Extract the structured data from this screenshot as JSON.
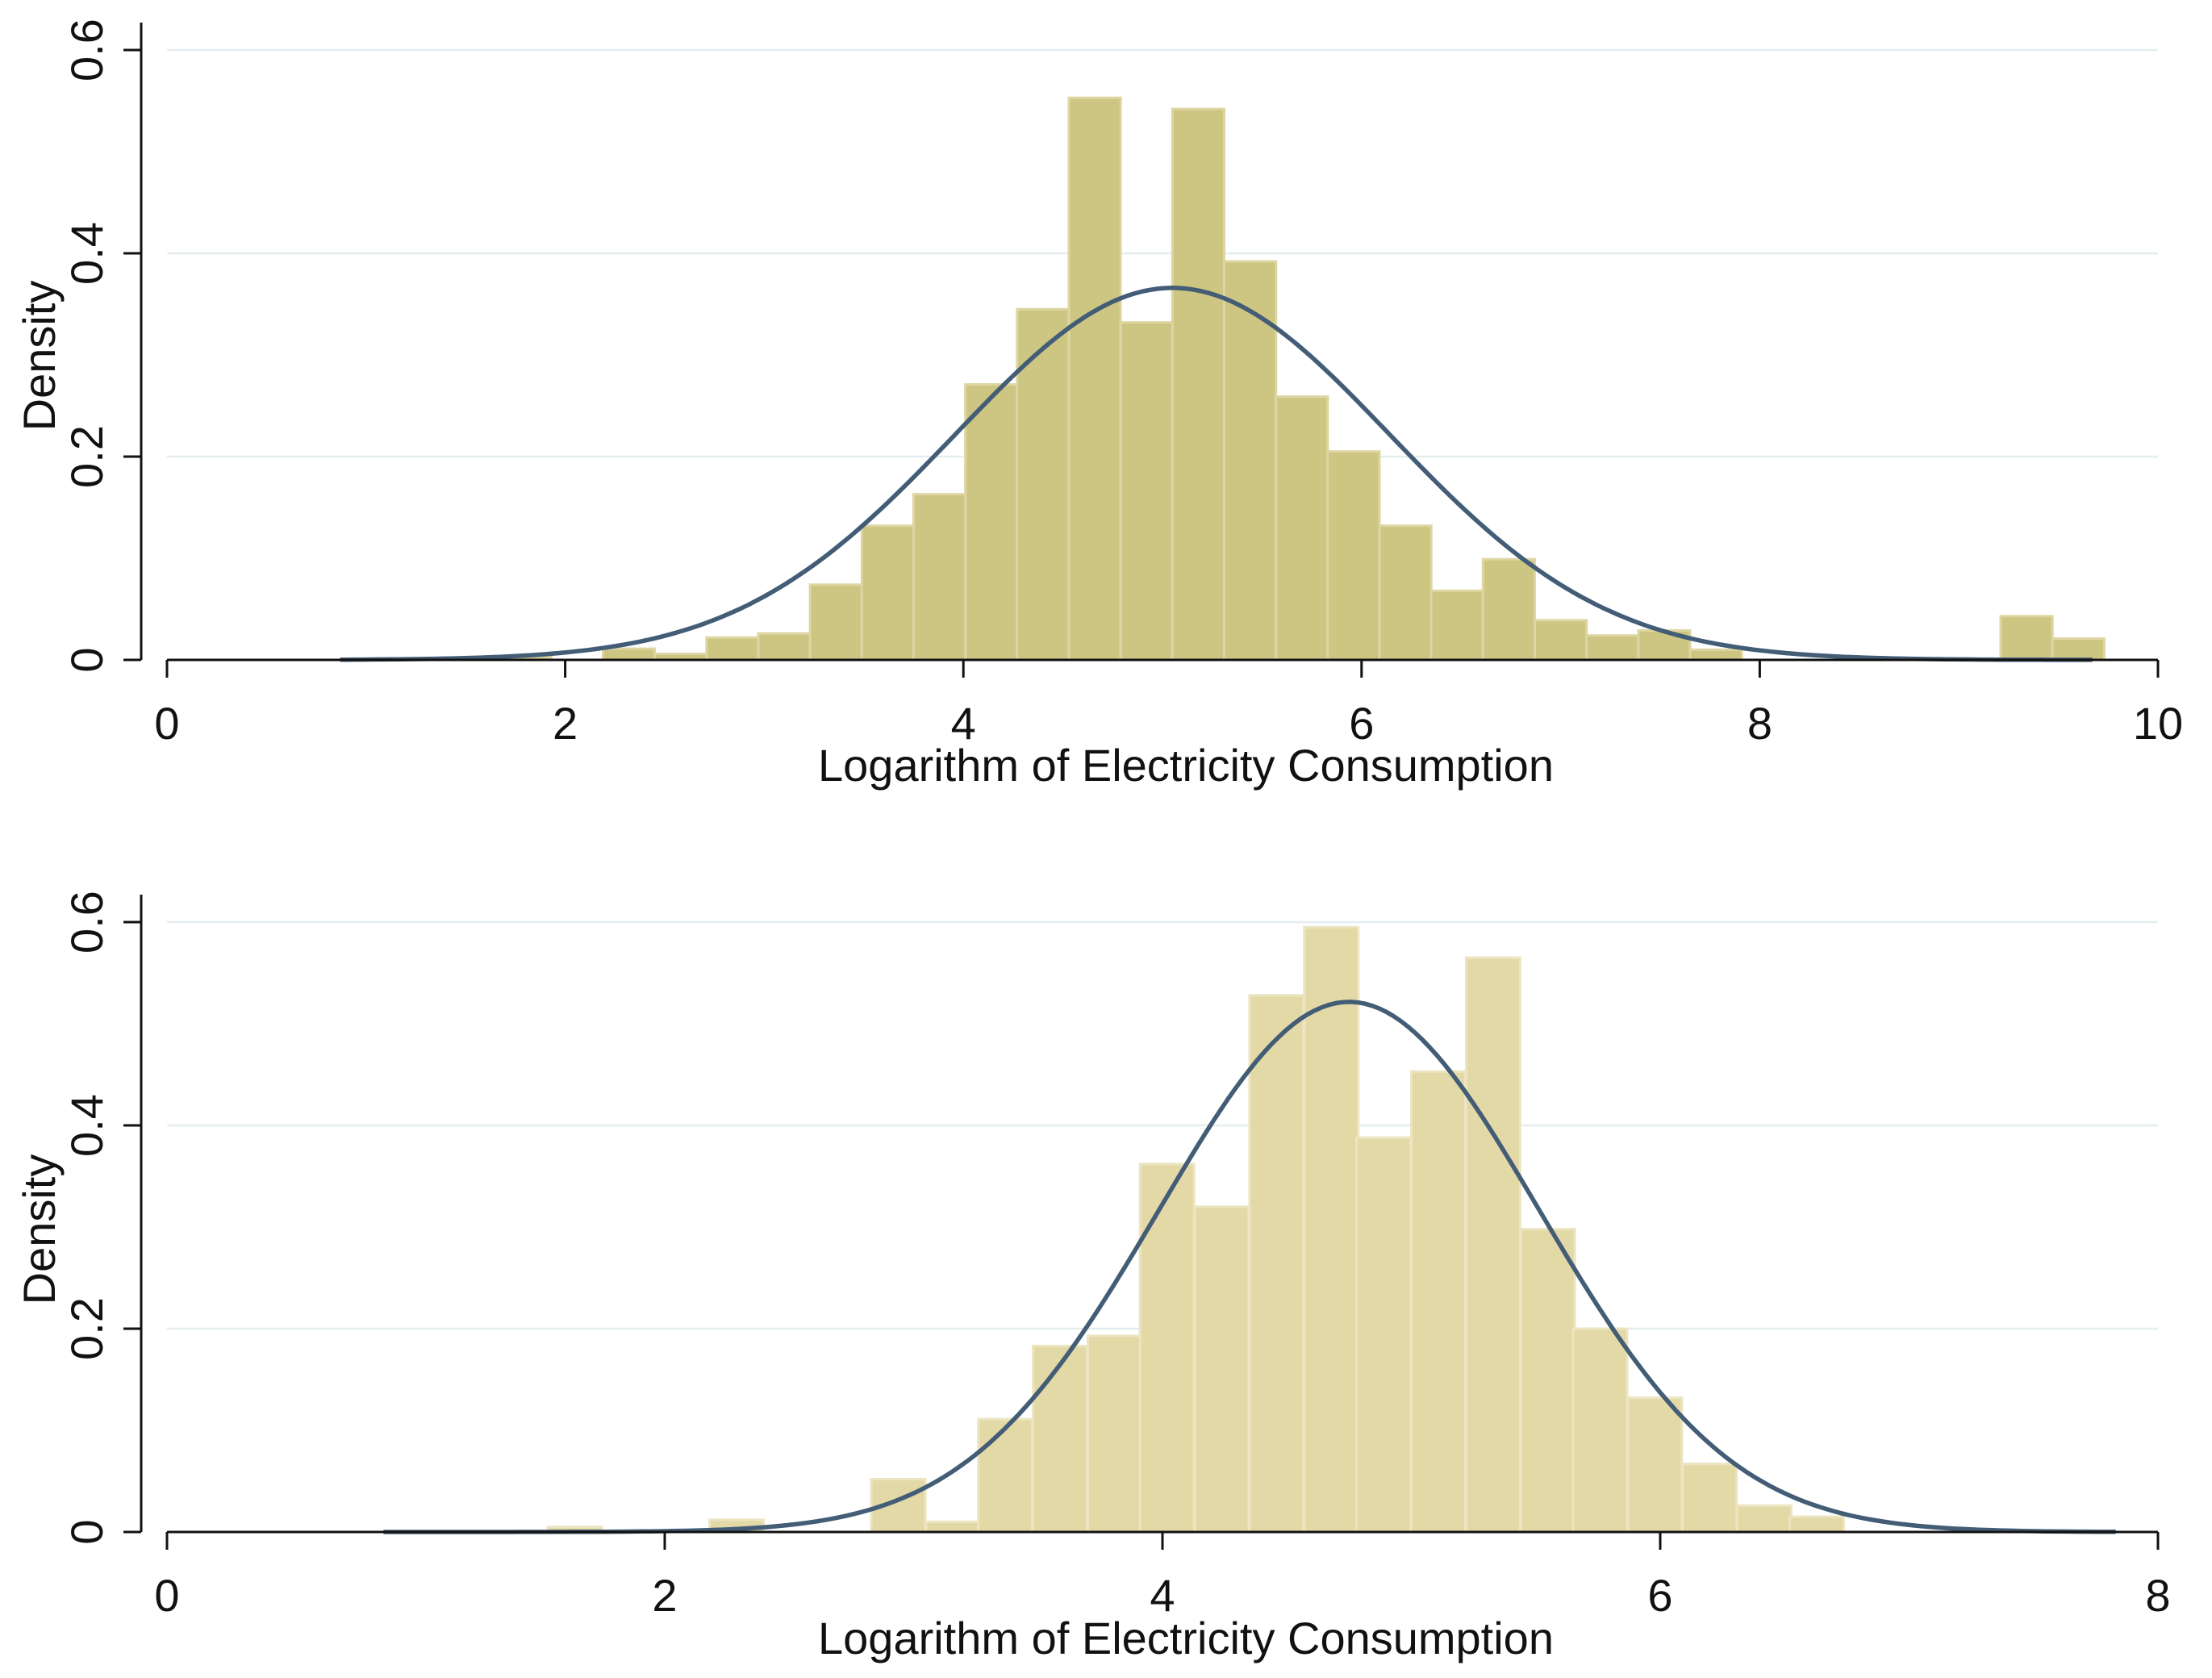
{
  "colors": {
    "background": "#ffffff",
    "grid": "#e4eef0",
    "axis": "#111111",
    "curve": "#435d77"
  },
  "chart_data": [
    {
      "type": "bar",
      "title": "",
      "xlabel": "Logarithm of Electricity Consumption",
      "ylabel": "Density",
      "xlim": [
        0,
        10
      ],
      "ylim": [
        0,
        0.6
      ],
      "xticks": [
        0,
        2,
        4,
        6,
        8,
        10
      ],
      "xtick_labels": [
        "0",
        "2",
        "4",
        "6",
        "8",
        "10"
      ],
      "yticks": [
        0,
        0.2,
        0.4,
        0.6
      ],
      "ytick_labels": [
        "0",
        "0.2",
        "0.4",
        "0.6"
      ],
      "grid": true,
      "bar_color": "#cdc582",
      "bar_edge": "#ddd6a2",
      "bin_width": 0.26,
      "bins": [
        {
          "start": 1.67,
          "density": 0.003
        },
        {
          "start": 2.19,
          "density": 0.011
        },
        {
          "start": 2.45,
          "density": 0.006
        },
        {
          "start": 2.71,
          "density": 0.022
        },
        {
          "start": 2.97,
          "density": 0.026
        },
        {
          "start": 3.23,
          "density": 0.074
        },
        {
          "start": 3.49,
          "density": 0.132
        },
        {
          "start": 3.75,
          "density": 0.163
        },
        {
          "start": 4.01,
          "density": 0.271
        },
        {
          "start": 4.27,
          "density": 0.345
        },
        {
          "start": 4.53,
          "density": 0.553
        },
        {
          "start": 4.79,
          "density": 0.332
        },
        {
          "start": 5.05,
          "density": 0.542
        },
        {
          "start": 5.31,
          "density": 0.392
        },
        {
          "start": 5.57,
          "density": 0.259
        },
        {
          "start": 5.83,
          "density": 0.205
        },
        {
          "start": 6.09,
          "density": 0.132
        },
        {
          "start": 6.35,
          "density": 0.068
        },
        {
          "start": 6.61,
          "density": 0.099
        },
        {
          "start": 6.87,
          "density": 0.039
        },
        {
          "start": 7.13,
          "density": 0.024
        },
        {
          "start": 7.39,
          "density": 0.029
        },
        {
          "start": 7.65,
          "density": 0.01
        },
        {
          "start": 9.21,
          "density": 0.043
        },
        {
          "start": 9.47,
          "density": 0.021
        }
      ],
      "normal_curve": {
        "mean": 5.05,
        "sd": 1.09,
        "x_range": [
          0.87,
          9.67
        ]
      }
    },
    {
      "type": "bar",
      "title": "",
      "xlabel": "Logarithm of Electricity Consumption",
      "ylabel": "Density",
      "xlim": [
        0,
        8
      ],
      "ylim": [
        0,
        0.6
      ],
      "xticks": [
        0,
        2,
        4,
        6,
        8
      ],
      "xtick_labels": [
        "0",
        "2",
        "4",
        "6",
        "8"
      ],
      "yticks": [
        0,
        0.2,
        0.4,
        0.6
      ],
      "ytick_labels": [
        "0",
        "0.2",
        "0.4",
        "0.6"
      ],
      "grid": true,
      "bar_color": "#e3d9a6",
      "bar_edge": "#ece5c2",
      "bin_width": 0.217,
      "bins": [
        {
          "start": 1.53,
          "density": 0.005
        },
        {
          "start": 2.18,
          "density": 0.012
        },
        {
          "start": 2.83,
          "density": 0.052
        },
        {
          "start": 3.05,
          "density": 0.01
        },
        {
          "start": 3.26,
          "density": 0.111
        },
        {
          "start": 3.48,
          "density": 0.183
        },
        {
          "start": 3.7,
          "density": 0.193
        },
        {
          "start": 3.91,
          "density": 0.362
        },
        {
          "start": 4.13,
          "density": 0.32
        },
        {
          "start": 4.35,
          "density": 0.528
        },
        {
          "start": 4.57,
          "density": 0.595
        },
        {
          "start": 4.78,
          "density": 0.388
        },
        {
          "start": 5.0,
          "density": 0.453
        },
        {
          "start": 5.22,
          "density": 0.565
        },
        {
          "start": 5.44,
          "density": 0.298
        },
        {
          "start": 5.65,
          "density": 0.2
        },
        {
          "start": 5.87,
          "density": 0.132
        },
        {
          "start": 6.09,
          "density": 0.067
        },
        {
          "start": 6.31,
          "density": 0.026
        },
        {
          "start": 6.52,
          "density": 0.015
        }
      ],
      "normal_curve": {
        "mean": 4.75,
        "sd": 0.765,
        "x_range": [
          0.87,
          7.83
        ]
      }
    }
  ]
}
